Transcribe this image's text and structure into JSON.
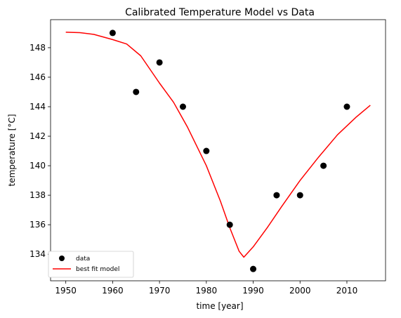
{
  "chart_data": {
    "type": "scatter",
    "title": "Calibrated Temperature Model vs Data",
    "xlabel": "time [year]",
    "ylabel": "temperature [°C]",
    "xlim": [
      1946.75,
      2018.25
    ],
    "ylim": [
      132.2,
      149.9
    ],
    "xticks": [
      1950,
      1960,
      1970,
      1980,
      1990,
      2000,
      2010
    ],
    "yticks": [
      134,
      136,
      138,
      140,
      142,
      144,
      146,
      148
    ],
    "grid": false,
    "legend_position": "lower-left",
    "series": [
      {
        "name": "data",
        "kind": "scatter",
        "color": "#000000",
        "x": [
          1960,
          1965,
          1970,
          1975,
          1980,
          1985,
          1990,
          1995,
          2000,
          2005,
          2010
        ],
        "y": [
          149,
          145,
          147,
          144,
          141,
          136,
          133,
          138,
          138,
          140,
          144
        ]
      },
      {
        "name": "best fit model",
        "kind": "line",
        "color": "#ff0000",
        "x": [
          1950,
          1953,
          1956,
          1960,
          1963,
          1966,
          1970,
          1973,
          1976,
          1980,
          1983,
          1985,
          1987,
          1988,
          1990,
          1993,
          1996,
          2000,
          2004,
          2008,
          2012,
          2015
        ],
        "y": [
          149.05,
          149.02,
          148.9,
          148.55,
          148.25,
          147.45,
          145.6,
          144.3,
          142.6,
          140.0,
          137.6,
          135.8,
          134.2,
          133.8,
          134.5,
          135.8,
          137.2,
          139.0,
          140.6,
          142.1,
          143.3,
          144.1
        ]
      }
    ]
  }
}
